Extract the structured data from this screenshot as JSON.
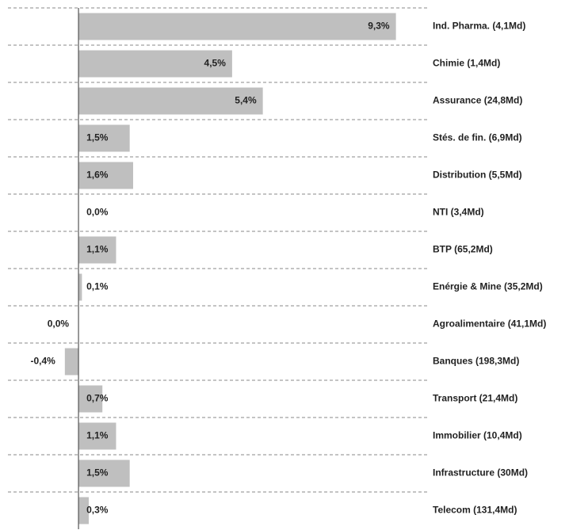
{
  "chart_data": {
    "type": "bar",
    "orientation": "horizontal",
    "categories": [
      "Ind. Pharma. (4,1Md)",
      "Chimie (1,4Md)",
      "Assurance (24,8Md)",
      "Stés. de fin. (6,9Md)",
      "Distribution (5,5Md)",
      "NTI (3,4Md)",
      "BTP (65,2Md)",
      "Enérgie & Mine (35,2Md)",
      "Agroalimentaire (41,1Md)",
      "Banques (198,3Md)",
      "Transport (21,4Md)",
      "Immobilier (10,4Md)",
      "Infrastructure (30Md)",
      "Telecom (131,4Md)"
    ],
    "values": [
      9.3,
      4.5,
      5.4,
      1.5,
      1.6,
      0.0,
      1.1,
      0.1,
      -0.0,
      -0.4,
      0.7,
      1.1,
      1.5,
      0.3
    ],
    "value_labels": [
      "9,3%",
      "4,5%",
      "5,4%",
      "1,5%",
      "1,6%",
      "0,0%",
      "1,1%",
      "0,1%",
      "0,0%",
      "-0,4%",
      "0,7%",
      "1,1%",
      "1,5%",
      "0,3%"
    ],
    "color": "#bfbfbf",
    "xlim": [
      -2.3,
      10.4
    ]
  }
}
